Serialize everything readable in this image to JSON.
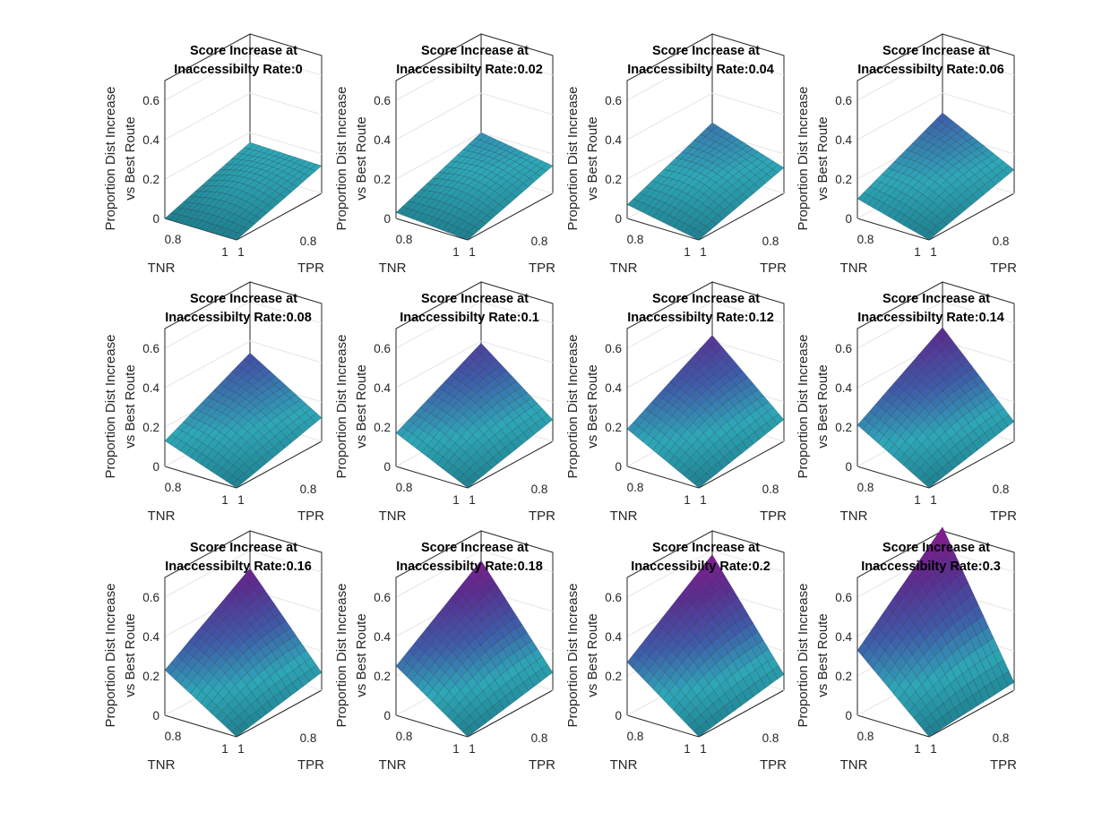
{
  "chart_data": {
    "type": "surface",
    "title_line1": "Score Increase at",
    "title_prefix": "Inaccessibilty Rate:",
    "xlabel": "TNR",
    "ylabel": "TPR",
    "zlabel_line1": "Proportion Dist Increase",
    "zlabel_line2": "vs Best Route",
    "x_tick_labels": [
      "0.8",
      "1"
    ],
    "y_tick_labels": [
      "1",
      "0.8"
    ],
    "z_tick_labels": [
      "0",
      "0.2",
      "0.4",
      "0.6"
    ],
    "zlim": [
      0,
      0.7
    ],
    "colormap": [
      "#1f7f8f",
      "#2ea8b8",
      "#3f5aa8",
      "#5b2d8f",
      "#8a1a8f"
    ],
    "panels": [
      {
        "rate": "0",
        "z_tnr08_tpr1": 0.0,
        "z_tnr1_tpr08": 0.14,
        "z_tnr08_tpr08": 0.15,
        "z_tnr1_tpr1": 0.0
      },
      {
        "rate": "0.02",
        "z_tnr08_tpr1": 0.03,
        "z_tnr1_tpr08": 0.14,
        "z_tnr08_tpr08": 0.2,
        "z_tnr1_tpr1": 0.0
      },
      {
        "rate": "0.04",
        "z_tnr08_tpr1": 0.07,
        "z_tnr1_tpr08": 0.13,
        "z_tnr08_tpr08": 0.25,
        "z_tnr1_tpr1": 0.0
      },
      {
        "rate": "0.06",
        "z_tnr08_tpr1": 0.1,
        "z_tnr1_tpr08": 0.12,
        "z_tnr08_tpr08": 0.3,
        "z_tnr1_tpr1": 0.0
      },
      {
        "rate": "0.08",
        "z_tnr08_tpr1": 0.13,
        "z_tnr1_tpr08": 0.12,
        "z_tnr08_tpr08": 0.34,
        "z_tnr1_tpr1": 0.0
      },
      {
        "rate": "0.1",
        "z_tnr08_tpr1": 0.17,
        "z_tnr1_tpr08": 0.11,
        "z_tnr08_tpr08": 0.39,
        "z_tnr1_tpr1": 0.0
      },
      {
        "rate": "0.12",
        "z_tnr08_tpr1": 0.19,
        "z_tnr1_tpr08": 0.11,
        "z_tnr08_tpr08": 0.43,
        "z_tnr1_tpr1": 0.0
      },
      {
        "rate": "0.14",
        "z_tnr08_tpr1": 0.21,
        "z_tnr1_tpr08": 0.1,
        "z_tnr08_tpr08": 0.47,
        "z_tnr1_tpr1": 0.0
      },
      {
        "rate": "0.16",
        "z_tnr08_tpr1": 0.23,
        "z_tnr1_tpr08": 0.09,
        "z_tnr08_tpr08": 0.51,
        "z_tnr1_tpr1": 0.0
      },
      {
        "rate": "0.18",
        "z_tnr08_tpr1": 0.25,
        "z_tnr1_tpr08": 0.09,
        "z_tnr08_tpr08": 0.55,
        "z_tnr1_tpr1": 0.0
      },
      {
        "rate": "0.2",
        "z_tnr08_tpr1": 0.27,
        "z_tnr1_tpr08": 0.08,
        "z_tnr08_tpr08": 0.58,
        "z_tnr1_tpr1": 0.0
      },
      {
        "rate": "0.3",
        "z_tnr08_tpr1": 0.33,
        "z_tnr1_tpr08": 0.04,
        "z_tnr08_tpr08": 0.72,
        "z_tnr1_tpr1": 0.0
      }
    ]
  }
}
